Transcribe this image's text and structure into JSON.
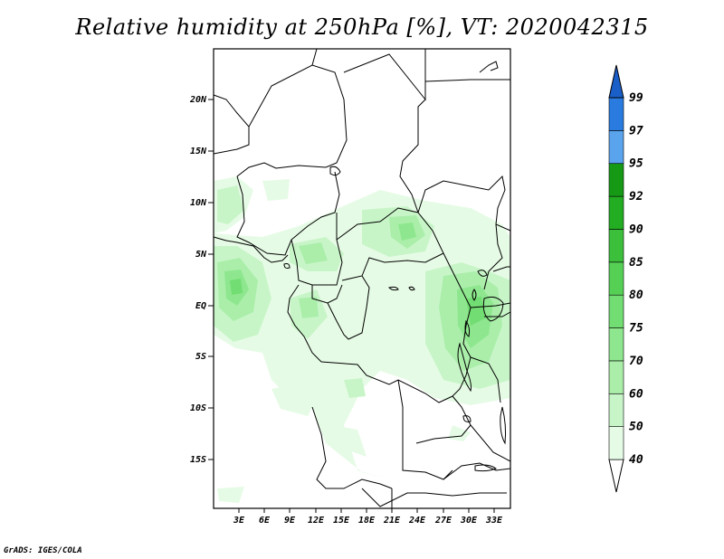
{
  "title": "Relative humidity at 250hPa [%], VT: 2020042315",
  "credit": "GrADS: IGES/COLA",
  "map": {
    "lat_labels": [
      "20N",
      "15N",
      "10N",
      "5N",
      "EQ",
      "5S",
      "10S",
      "15S"
    ],
    "lon_labels": [
      "3E",
      "6E",
      "9E",
      "12E",
      "15E",
      "18E",
      "21E",
      "24E",
      "27E",
      "30E",
      "33E"
    ]
  },
  "colorbar": {
    "levels": [
      "40",
      "50",
      "60",
      "70",
      "75",
      "80",
      "85",
      "90",
      "92",
      "95",
      "97",
      "99"
    ],
    "colors": [
      "#e6fbe6",
      "#c8f5c8",
      "#aaeeaa",
      "#8ee78e",
      "#72dd72",
      "#55d055",
      "#3cc03c",
      "#23ad23",
      "#169a16",
      "#5aa4ee",
      "#2a7be0",
      "#1a5ec8"
    ]
  }
}
